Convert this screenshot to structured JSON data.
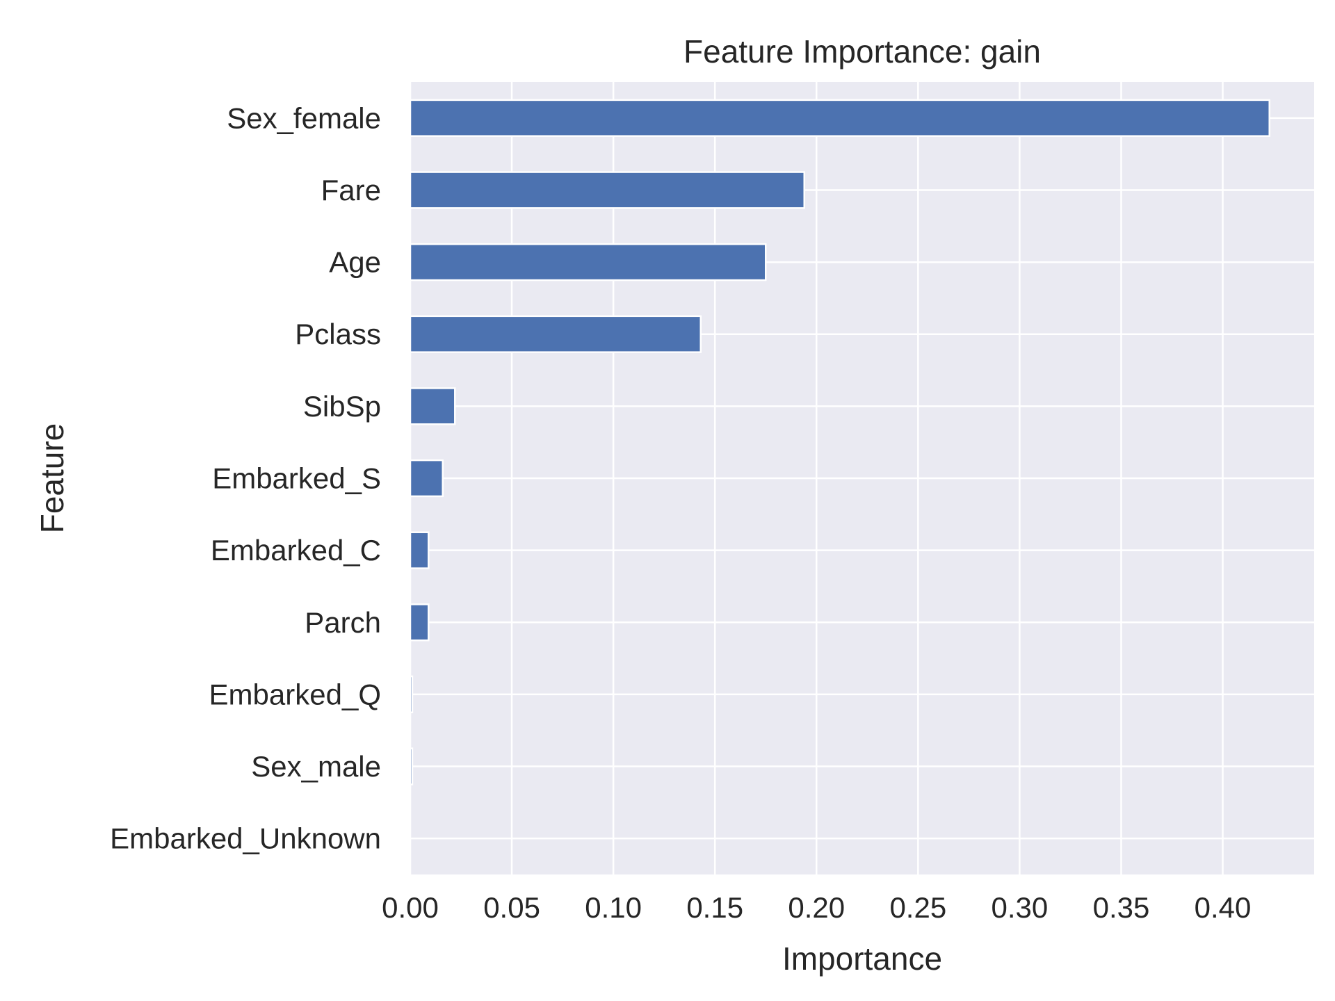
{
  "chart_data": {
    "type": "bar",
    "orientation": "horizontal",
    "title": "Feature Importance: gain",
    "xlabel": "Importance",
    "ylabel": "Feature",
    "categories": [
      "Sex_female",
      "Fare",
      "Age",
      "Pclass",
      "SibSp",
      "Embarked_S",
      "Embarked_C",
      "Parch",
      "Embarked_Q",
      "Sex_male",
      "Embarked_Unknown"
    ],
    "values": [
      0.423,
      0.194,
      0.175,
      0.143,
      0.022,
      0.016,
      0.009,
      0.009,
      0.001,
      0.001,
      0.0
    ],
    "xlim": [
      0,
      0.445
    ],
    "xticks": [
      0.0,
      0.05,
      0.1,
      0.15,
      0.2,
      0.25,
      0.3,
      0.35,
      0.4
    ],
    "xtick_labels": [
      "0.00",
      "0.05",
      "0.10",
      "0.15",
      "0.20",
      "0.25",
      "0.30",
      "0.35",
      "0.40"
    ],
    "grid": true,
    "legend": "none",
    "colors": {
      "bar": "#4c72b0",
      "plot_background": "#eaeaf2",
      "grid": "#ffffff",
      "text": "#262626"
    }
  }
}
